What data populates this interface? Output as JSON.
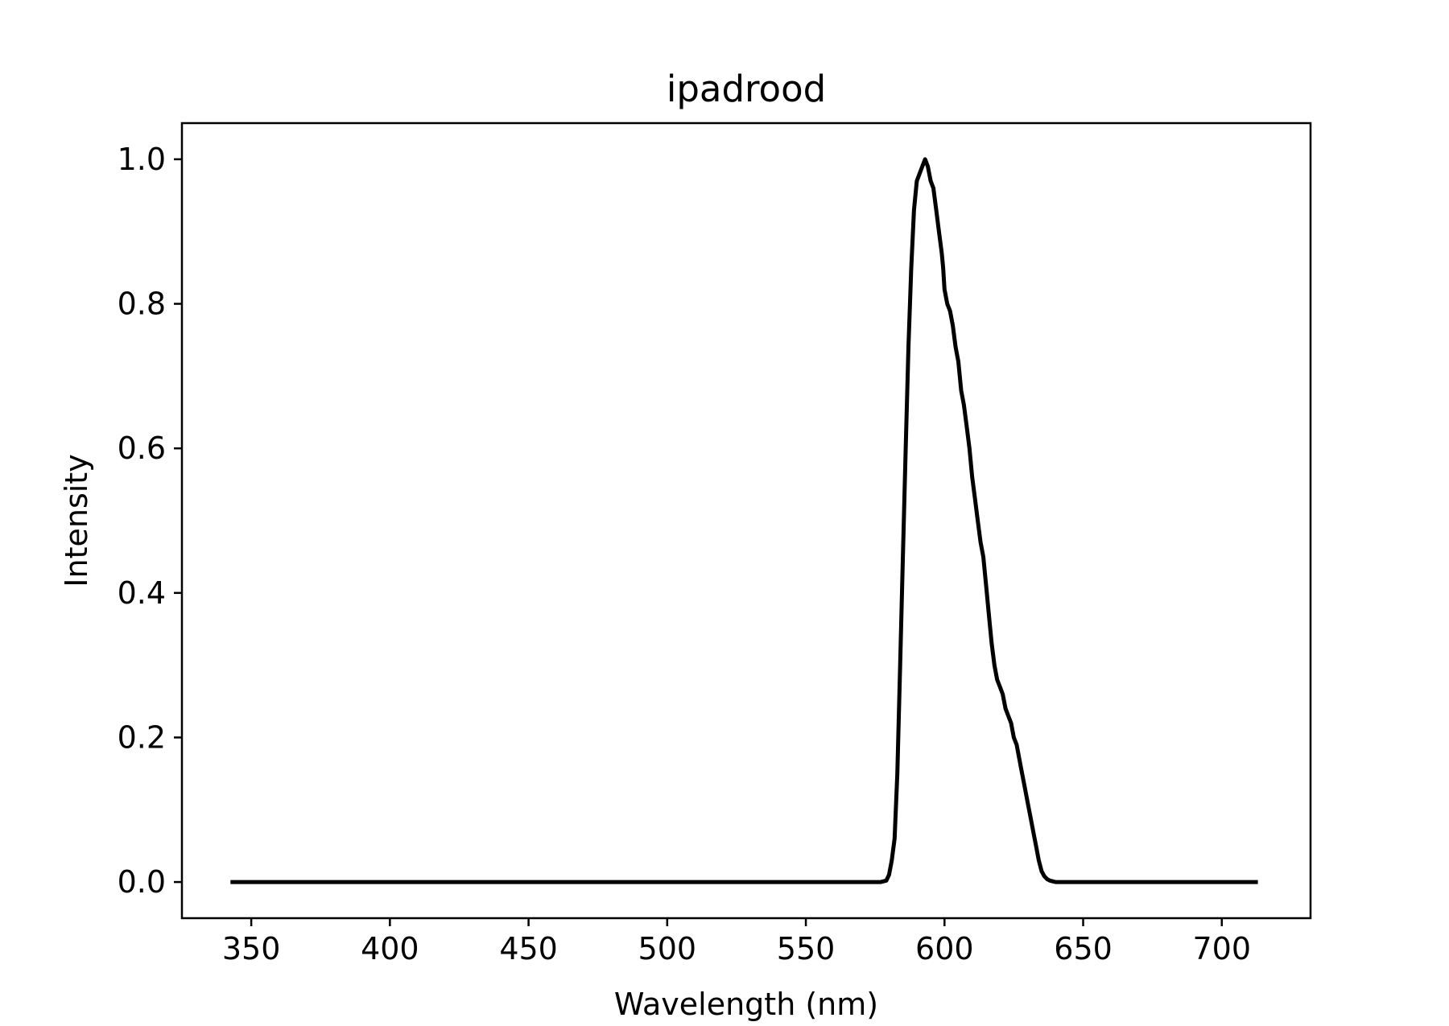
{
  "chart_data": {
    "type": "line",
    "title": "ipadrood",
    "xlabel": "Wavelength (nm)",
    "ylabel": "Intensity",
    "xlim": [
      325,
      732
    ],
    "ylim": [
      -0.05,
      1.05
    ],
    "xticks": [
      350,
      400,
      450,
      500,
      550,
      600,
      650,
      700
    ],
    "yticks": [
      0.0,
      0.2,
      0.4,
      0.6,
      0.8,
      1.0
    ],
    "xtick_labels": [
      "350",
      "400",
      "450",
      "500",
      "550",
      "600",
      "650",
      "700"
    ],
    "ytick_labels": [
      "0.0",
      "0.2",
      "0.4",
      "0.6",
      "0.8",
      "1.0"
    ],
    "grid": false,
    "legend": null,
    "series": [
      {
        "color": "#000000",
        "x": [
          342.5,
          575,
          577,
          579,
          580,
          581,
          582,
          583,
          584,
          585,
          586,
          587,
          588,
          589,
          590,
          591,
          592,
          593,
          594,
          595,
          596,
          597,
          598,
          599,
          599.5,
          600,
          601,
          602,
          603,
          604,
          605,
          606,
          607,
          608,
          609,
          610,
          611,
          612,
          613,
          614,
          615,
          616,
          617,
          618,
          619,
          620,
          621,
          622,
          623,
          624,
          625,
          626,
          627,
          628,
          629,
          630,
          631,
          632,
          633,
          634,
          635,
          636,
          637,
          638,
          639,
          640,
          641,
          642,
          643,
          644,
          645,
          646,
          648,
          650,
          652,
          655,
          663,
          683,
          713
        ],
        "y": [
          0.0,
          0.0,
          0.0,
          0.002,
          0.01,
          0.03,
          0.06,
          0.15,
          0.3,
          0.45,
          0.6,
          0.74,
          0.85,
          0.93,
          0.97,
          0.98,
          0.99,
          1.0,
          0.99,
          0.97,
          0.96,
          0.93,
          0.9,
          0.87,
          0.85,
          0.82,
          0.8,
          0.79,
          0.77,
          0.74,
          0.72,
          0.68,
          0.66,
          0.63,
          0.6,
          0.56,
          0.53,
          0.5,
          0.47,
          0.45,
          0.41,
          0.37,
          0.33,
          0.3,
          0.28,
          0.27,
          0.26,
          0.24,
          0.23,
          0.22,
          0.2,
          0.19,
          0.17,
          0.15,
          0.13,
          0.11,
          0.09,
          0.07,
          0.05,
          0.03,
          0.015,
          0.008,
          0.004,
          0.002,
          0.001,
          0.0,
          0.0,
          0.0,
          0.0,
          0.0,
          0.0,
          0.0,
          0.0,
          0.0,
          0.0,
          0.0,
          0.0,
          0.0,
          0.0
        ]
      }
    ]
  }
}
